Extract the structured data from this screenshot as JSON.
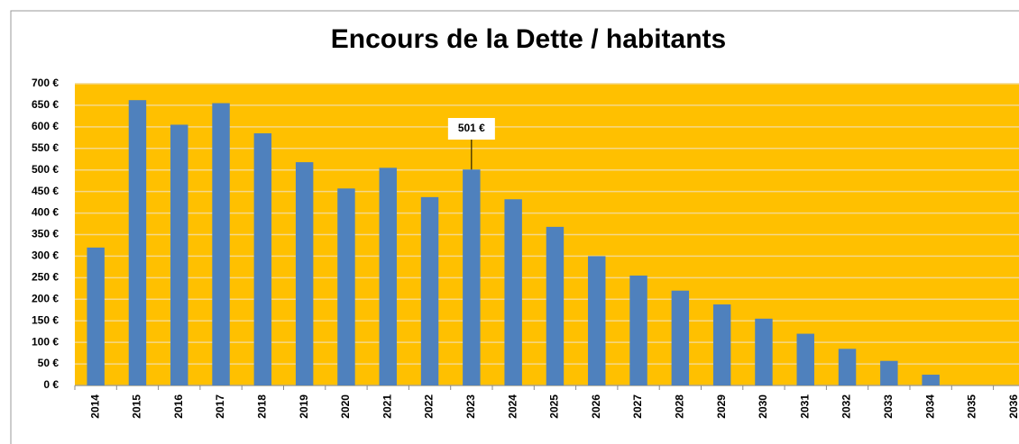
{
  "chart_data": {
    "type": "bar",
    "title": "Encours de la Dette / habitants",
    "categories": [
      "2014",
      "2015",
      "2016",
      "2017",
      "2018",
      "2019",
      "2020",
      "2021",
      "2022",
      "2023",
      "2024",
      "2025",
      "2026",
      "2027",
      "2028",
      "2029",
      "2030",
      "2031",
      "2032",
      "2033",
      "2034",
      "2035",
      "2036"
    ],
    "values": [
      320,
      662,
      605,
      655,
      585,
      518,
      457,
      505,
      437,
      501,
      432,
      368,
      300,
      255,
      220,
      188,
      155,
      120,
      85,
      57,
      25,
      0,
      null
    ],
    "value_labels": [
      null,
      null,
      null,
      null,
      null,
      null,
      null,
      null,
      null,
      "501 €",
      null,
      null,
      null,
      null,
      null,
      null,
      null,
      null,
      null,
      null,
      null,
      null,
      null
    ],
    "color": "#4f81bd",
    "background": "#ffc000",
    "ylim": [
      0,
      700
    ],
    "yticks": [
      {
        "value": 0,
        "label": "0 €"
      },
      {
        "value": 50,
        "label": "50 €"
      },
      {
        "value": 100,
        "label": "100 €"
      },
      {
        "value": 150,
        "label": "150 €"
      },
      {
        "value": 200,
        "label": "200 €"
      },
      {
        "value": 250,
        "label": "250 €"
      },
      {
        "value": 300,
        "label": "300 €"
      },
      {
        "value": 350,
        "label": "350 €"
      },
      {
        "value": 400,
        "label": "400 €"
      },
      {
        "value": 450,
        "label": "450 €"
      },
      {
        "value": 500,
        "label": "500 €"
      },
      {
        "value": 550,
        "label": "550 €"
      },
      {
        "value": 600,
        "label": "600 €"
      },
      {
        "value": 650,
        "label": "650 €"
      },
      {
        "value": 700,
        "label": "700 €"
      }
    ],
    "grid": true
  }
}
